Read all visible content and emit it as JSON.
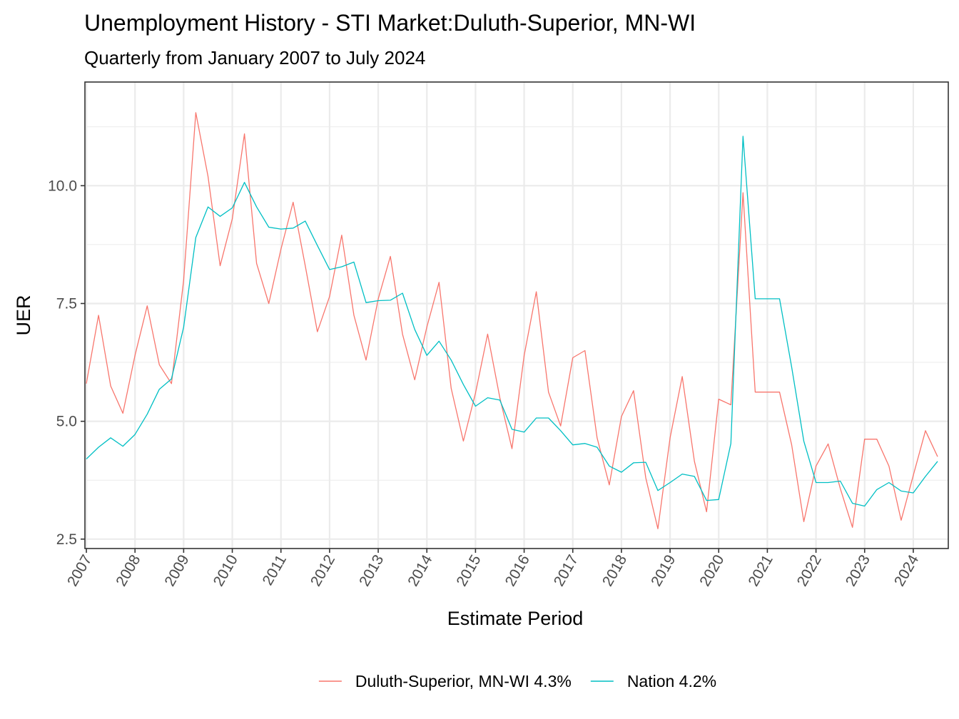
{
  "chart_data": {
    "type": "line",
    "title": "Unemployment History - STI Market:Duluth-Superior, MN-WI",
    "subtitle": "Quarterly from January 2007 to July 2024",
    "xlabel": "Estimate Period",
    "ylabel": "UER",
    "x_ticks": [
      "2007",
      "2008",
      "2009",
      "2010",
      "2011",
      "2012",
      "2013",
      "2014",
      "2015",
      "2016",
      "2017",
      "2018",
      "2019",
      "2020",
      "2021",
      "2022",
      "2023",
      "2024"
    ],
    "y_ticks": [
      "2.5",
      "5.0",
      "7.5",
      "10.0"
    ],
    "ylim": [
      2.3,
      12.2
    ],
    "xlim": [
      2006.97,
      2024.72
    ],
    "grid": true,
    "legend_position": "bottom",
    "x": [
      2007.0,
      2007.25,
      2007.5,
      2007.75,
      2008.0,
      2008.25,
      2008.5,
      2008.75,
      2009.0,
      2009.25,
      2009.5,
      2009.75,
      2010.0,
      2010.25,
      2010.5,
      2010.75,
      2011.0,
      2011.25,
      2011.5,
      2011.75,
      2012.0,
      2012.25,
      2012.5,
      2012.75,
      2013.0,
      2013.25,
      2013.5,
      2013.75,
      2014.0,
      2014.25,
      2014.5,
      2014.75,
      2015.0,
      2015.25,
      2015.5,
      2015.75,
      2016.0,
      2016.25,
      2016.5,
      2016.75,
      2017.0,
      2017.25,
      2017.5,
      2017.75,
      2018.0,
      2018.25,
      2018.5,
      2018.75,
      2019.0,
      2019.25,
      2019.5,
      2019.75,
      2020.0,
      2020.25,
      2020.5,
      2020.75,
      2021.0,
      2021.25,
      2021.5,
      2021.75,
      2022.0,
      2022.25,
      2022.5,
      2022.75,
      2023.0,
      2023.25,
      2023.5,
      2023.75,
      2024.0,
      2024.25,
      2024.5
    ],
    "series": [
      {
        "name": "Duluth-Superior, MN-WI 4.3%",
        "color": "#F8766D",
        "values": [
          5.8,
          7.25,
          5.75,
          5.17,
          6.4,
          7.45,
          6.2,
          5.8,
          8.0,
          11.55,
          10.2,
          8.3,
          9.3,
          11.1,
          8.35,
          7.5,
          8.65,
          9.65,
          8.3,
          6.9,
          7.65,
          8.95,
          7.25,
          6.3,
          7.6,
          8.5,
          6.85,
          5.88,
          7.0,
          7.95,
          5.7,
          4.58,
          5.6,
          6.85,
          5.5,
          4.42,
          6.4,
          7.75,
          5.62,
          4.9,
          6.35,
          6.5,
          4.65,
          3.65,
          5.1,
          5.65,
          3.8,
          2.72,
          4.65,
          5.95,
          4.15,
          3.08,
          5.47,
          5.35,
          9.85,
          5.62,
          5.62,
          5.62,
          4.5,
          2.87,
          4.05,
          4.52,
          3.57,
          2.75,
          4.62,
          4.62,
          4.05,
          2.9,
          3.85,
          4.8,
          4.25
        ]
      },
      {
        "name": "Nation 4.2%",
        "color": "#00BFC4",
        "values": [
          4.2,
          4.45,
          4.65,
          4.47,
          4.72,
          5.15,
          5.68,
          5.9,
          7.0,
          8.9,
          9.55,
          9.35,
          9.53,
          10.07,
          9.55,
          9.12,
          9.08,
          9.1,
          9.25,
          8.73,
          8.22,
          8.28,
          8.38,
          7.52,
          7.56,
          7.57,
          7.72,
          6.95,
          6.4,
          6.7,
          6.3,
          5.78,
          5.32,
          5.5,
          5.45,
          4.83,
          4.77,
          5.07,
          5.07,
          4.8,
          4.5,
          4.53,
          4.45,
          4.05,
          3.92,
          4.12,
          4.13,
          3.53,
          3.7,
          3.88,
          3.83,
          3.32,
          3.34,
          4.53,
          11.05,
          7.6,
          7.6,
          7.6,
          6.15,
          4.58,
          3.7,
          3.7,
          3.73,
          3.26,
          3.2,
          3.55,
          3.7,
          3.52,
          3.48,
          3.83,
          4.15
        ]
      }
    ]
  }
}
